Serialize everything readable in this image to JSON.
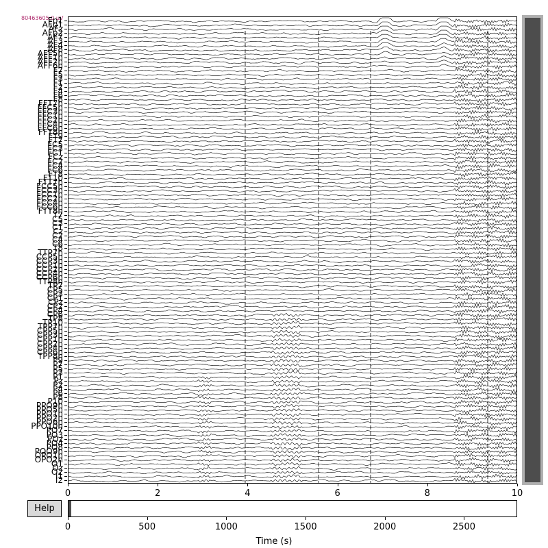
{
  "scale_label": "80463605.0 µV",
  "channels": [
    "Fp1",
    "AFp1",
    "AFz",
    "AFp2",
    "AF7",
    "AF3",
    "AF4",
    "AF8",
    "AFF5h",
    "AFF1h",
    "AFF2h",
    "AFF6h",
    "F7",
    "F5",
    "F3",
    "F1",
    "F2",
    "F4",
    "F6",
    "F8",
    "FFT7h",
    "FFC5h",
    "FFC3h",
    "FFC1h",
    "FFC2h",
    "FFC4h",
    "FFC6h",
    "FFT8h",
    "FT9",
    "FT7",
    "FC5",
    "FC3",
    "FC1",
    "FCz",
    "FC2",
    "FC4",
    "FC6",
    "FT8",
    "FT10",
    "FTT7h",
    "FCC5h",
    "FCC3h",
    "FCC1h",
    "FCC2h",
    "FCC4h",
    "FCC6h",
    "FTT8h",
    "T7",
    "C5",
    "C3",
    "C1",
    "Cz",
    "C2",
    "C4",
    "C6",
    "T8",
    "TTP7h",
    "CCP5h",
    "CCP3h",
    "CCP1h",
    "CCP2h",
    "CCP4h",
    "CCP6h",
    "TTP8h",
    "TP7",
    "CP5",
    "CP3",
    "CP1",
    "CPz",
    "CP2",
    "CP4",
    "CP6",
    "TP8",
    "TP10",
    "TPP7h",
    "CPP5h",
    "CPP3h",
    "CPP1h",
    "CPP2h",
    "CPP4h",
    "CPP6h",
    "TPP8h",
    "P9",
    "P7",
    "P5",
    "P3",
    "P1",
    "Pz",
    "P2",
    "P4",
    "P6",
    "P8",
    "P10",
    "PPO9h",
    "PPO5h",
    "PPO1h",
    "PPO2h",
    "PPO6h",
    "PPO10h",
    "PO7",
    "PO3",
    "POz",
    "PO4",
    "PO8",
    "POO9h",
    "OPO1h",
    "OPO2h",
    "O1",
    "Oz",
    "O2",
    "I1",
    "I2"
  ],
  "xaxis_main": {
    "ticks": [
      "0",
      "2",
      "4",
      "6",
      "8",
      "10"
    ],
    "range": [
      0,
      10
    ]
  },
  "xaxis_time": {
    "ticks": [
      "0",
      "500",
      "1000",
      "1500",
      "2000",
      "2500"
    ],
    "range": [
      0,
      2835
    ],
    "label": "Time (s)"
  },
  "help_button": {
    "label": "Help"
  },
  "horizontal_scroll": {
    "position_s": 0,
    "window_s": 10,
    "total_s": 2835
  },
  "vertical_scroll": {
    "fraction_visible": 1.0
  },
  "colors": {
    "trace": "#000000",
    "scale": "#b03070",
    "scrollbar_thumb": "#4d4d4d",
    "scrollbar_track": "#b0b0b0",
    "button_bg": "#d9d9d9"
  }
}
